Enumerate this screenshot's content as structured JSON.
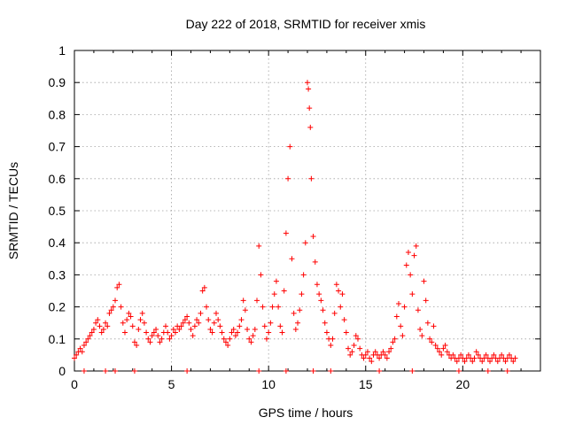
{
  "chart_data": {
    "type": "scatter",
    "title": "Day 222 of 2018, SRMTID for receiver xmis",
    "xlabel": "GPS time / hours",
    "ylabel": "SRMTID / TECUs",
    "xlim": [
      0,
      24
    ],
    "ylim": [
      0,
      1
    ],
    "xticks": [
      0,
      5,
      10,
      15,
      20
    ],
    "xtick_labels": [
      "0",
      "5",
      "10",
      "15",
      "20"
    ],
    "yticks": [
      0,
      0.1,
      0.2,
      0.3,
      0.4,
      0.5,
      0.6,
      0.7,
      0.8,
      0.9,
      1
    ],
    "ytick_labels": [
      "0",
      "0.1",
      "0.2",
      "0.3",
      "0.4",
      "0.5",
      "0.6",
      "0.7",
      "0.8",
      "0.9",
      "1"
    ],
    "grid": true,
    "marker": "plus",
    "color": "#ff0000",
    "series": [
      {
        "name": "SRMTID",
        "points": [
          [
            0.0,
            0.04
          ],
          [
            0.1,
            0.05
          ],
          [
            0.2,
            0.06
          ],
          [
            0.3,
            0.07
          ],
          [
            0.4,
            0.06
          ],
          [
            0.5,
            0.08
          ],
          [
            0.6,
            0.09
          ],
          [
            0.7,
            0.1
          ],
          [
            0.8,
            0.11
          ],
          [
            0.9,
            0.12
          ],
          [
            1.0,
            0.13
          ],
          [
            1.1,
            0.15
          ],
          [
            1.2,
            0.16
          ],
          [
            1.3,
            0.14
          ],
          [
            1.4,
            0.12
          ],
          [
            1.5,
            0.13
          ],
          [
            1.6,
            0.15
          ],
          [
            1.7,
            0.14
          ],
          [
            1.8,
            0.18
          ],
          [
            1.9,
            0.19
          ],
          [
            2.0,
            0.2
          ],
          [
            2.1,
            0.22
          ],
          [
            2.2,
            0.26
          ],
          [
            2.3,
            0.27
          ],
          [
            2.4,
            0.2
          ],
          [
            2.5,
            0.15
          ],
          [
            2.6,
            0.12
          ],
          [
            2.7,
            0.16
          ],
          [
            2.8,
            0.18
          ],
          [
            2.9,
            0.17
          ],
          [
            3.0,
            0.14
          ],
          [
            3.1,
            0.09
          ],
          [
            3.2,
            0.08
          ],
          [
            3.3,
            0.13
          ],
          [
            3.4,
            0.16
          ],
          [
            3.5,
            0.18
          ],
          [
            3.6,
            0.15
          ],
          [
            3.7,
            0.12
          ],
          [
            3.8,
            0.1
          ],
          [
            3.9,
            0.09
          ],
          [
            4.0,
            0.11
          ],
          [
            4.1,
            0.12
          ],
          [
            4.2,
            0.13
          ],
          [
            4.3,
            0.11
          ],
          [
            4.4,
            0.09
          ],
          [
            4.5,
            0.1
          ],
          [
            4.6,
            0.12
          ],
          [
            4.7,
            0.14
          ],
          [
            4.8,
            0.12
          ],
          [
            4.9,
            0.1
          ],
          [
            5.0,
            0.11
          ],
          [
            5.1,
            0.13
          ],
          [
            5.2,
            0.12
          ],
          [
            5.3,
            0.14
          ],
          [
            5.4,
            0.13
          ],
          [
            5.5,
            0.14
          ],
          [
            5.6,
            0.15
          ],
          [
            5.7,
            0.16
          ],
          [
            5.8,
            0.17
          ],
          [
            5.9,
            0.15
          ],
          [
            6.0,
            0.13
          ],
          [
            6.1,
            0.11
          ],
          [
            6.2,
            0.14
          ],
          [
            6.3,
            0.16
          ],
          [
            6.4,
            0.15
          ],
          [
            6.5,
            0.18
          ],
          [
            6.6,
            0.25
          ],
          [
            6.7,
            0.26
          ],
          [
            6.8,
            0.2
          ],
          [
            6.9,
            0.16
          ],
          [
            7.0,
            0.13
          ],
          [
            7.1,
            0.12
          ],
          [
            7.2,
            0.15
          ],
          [
            7.3,
            0.18
          ],
          [
            7.4,
            0.16
          ],
          [
            7.5,
            0.14
          ],
          [
            7.6,
            0.12
          ],
          [
            7.7,
            0.1
          ],
          [
            7.8,
            0.09
          ],
          [
            7.9,
            0.08
          ],
          [
            8.0,
            0.1
          ],
          [
            8.1,
            0.12
          ],
          [
            8.2,
            0.13
          ],
          [
            8.3,
            0.11
          ],
          [
            8.4,
            0.12
          ],
          [
            8.5,
            0.14
          ],
          [
            8.6,
            0.16
          ],
          [
            8.7,
            0.22
          ],
          [
            8.8,
            0.19
          ],
          [
            8.9,
            0.13
          ],
          [
            9.0,
            0.1
          ],
          [
            9.1,
            0.09
          ],
          [
            9.2,
            0.11
          ],
          [
            9.3,
            0.13
          ],
          [
            9.4,
            0.22
          ],
          [
            9.5,
            0.39
          ],
          [
            9.6,
            0.3
          ],
          [
            9.7,
            0.2
          ],
          [
            9.8,
            0.14
          ],
          [
            9.9,
            0.1
          ],
          [
            10.0,
            0.12
          ],
          [
            10.1,
            0.15
          ],
          [
            10.2,
            0.2
          ],
          [
            10.3,
            0.24
          ],
          [
            10.4,
            0.28
          ],
          [
            10.5,
            0.2
          ],
          [
            10.6,
            0.14
          ],
          [
            10.7,
            0.12
          ],
          [
            10.8,
            0.25
          ],
          [
            10.9,
            0.43
          ],
          [
            11.0,
            0.6
          ],
          [
            11.1,
            0.7
          ],
          [
            11.2,
            0.35
          ],
          [
            11.3,
            0.18
          ],
          [
            11.4,
            0.13
          ],
          [
            11.5,
            0.15
          ],
          [
            11.6,
            0.19
          ],
          [
            11.7,
            0.24
          ],
          [
            11.8,
            0.3
          ],
          [
            11.9,
            0.4
          ],
          [
            12.0,
            0.9
          ],
          [
            12.05,
            0.88
          ],
          [
            12.1,
            0.82
          ],
          [
            12.15,
            0.76
          ],
          [
            12.2,
            0.6
          ],
          [
            12.3,
            0.42
          ],
          [
            12.4,
            0.34
          ],
          [
            12.5,
            0.27
          ],
          [
            12.6,
            0.24
          ],
          [
            12.7,
            0.22
          ],
          [
            12.8,
            0.19
          ],
          [
            12.9,
            0.15
          ],
          [
            13.0,
            0.12
          ],
          [
            13.1,
            0.1
          ],
          [
            13.2,
            0.08
          ],
          [
            13.3,
            0.1
          ],
          [
            13.4,
            0.18
          ],
          [
            13.5,
            0.27
          ],
          [
            13.6,
            0.25
          ],
          [
            13.7,
            0.2
          ],
          [
            13.8,
            0.24
          ],
          [
            13.9,
            0.16
          ],
          [
            14.0,
            0.12
          ],
          [
            14.1,
            0.07
          ],
          [
            14.2,
            0.05
          ],
          [
            14.3,
            0.06
          ],
          [
            14.4,
            0.08
          ],
          [
            14.5,
            0.11
          ],
          [
            14.6,
            0.1
          ],
          [
            14.7,
            0.07
          ],
          [
            14.8,
            0.05
          ],
          [
            14.9,
            0.04
          ],
          [
            15.0,
            0.05
          ],
          [
            15.1,
            0.06
          ],
          [
            15.2,
            0.04
          ],
          [
            15.3,
            0.03
          ],
          [
            15.4,
            0.05
          ],
          [
            15.5,
            0.06
          ],
          [
            15.6,
            0.05
          ],
          [
            15.7,
            0.04
          ],
          [
            15.8,
            0.05
          ],
          [
            15.9,
            0.06
          ],
          [
            16.0,
            0.05
          ],
          [
            16.1,
            0.04
          ],
          [
            16.2,
            0.06
          ],
          [
            16.3,
            0.07
          ],
          [
            16.4,
            0.09
          ],
          [
            16.5,
            0.1
          ],
          [
            16.6,
            0.17
          ],
          [
            16.7,
            0.21
          ],
          [
            16.8,
            0.14
          ],
          [
            16.9,
            0.11
          ],
          [
            17.0,
            0.2
          ],
          [
            17.1,
            0.33
          ],
          [
            17.2,
            0.37
          ],
          [
            17.3,
            0.3
          ],
          [
            17.4,
            0.24
          ],
          [
            17.5,
            0.36
          ],
          [
            17.6,
            0.39
          ],
          [
            17.7,
            0.19
          ],
          [
            17.8,
            0.13
          ],
          [
            17.9,
            0.11
          ],
          [
            18.0,
            0.28
          ],
          [
            18.1,
            0.22
          ],
          [
            18.2,
            0.15
          ],
          [
            18.3,
            0.1
          ],
          [
            18.4,
            0.09
          ],
          [
            18.5,
            0.14
          ],
          [
            18.6,
            0.08
          ],
          [
            18.7,
            0.07
          ],
          [
            18.8,
            0.06
          ],
          [
            18.9,
            0.05
          ],
          [
            19.0,
            0.07
          ],
          [
            19.1,
            0.08
          ],
          [
            19.2,
            0.06
          ],
          [
            19.3,
            0.05
          ],
          [
            19.4,
            0.04
          ],
          [
            19.5,
            0.05
          ],
          [
            19.6,
            0.04
          ],
          [
            19.7,
            0.03
          ],
          [
            19.8,
            0.04
          ],
          [
            19.9,
            0.05
          ],
          [
            20.0,
            0.04
          ],
          [
            20.1,
            0.03
          ],
          [
            20.2,
            0.04
          ],
          [
            20.3,
            0.05
          ],
          [
            20.4,
            0.04
          ],
          [
            20.5,
            0.03
          ],
          [
            20.6,
            0.04
          ],
          [
            20.7,
            0.06
          ],
          [
            20.8,
            0.05
          ],
          [
            20.9,
            0.04
          ],
          [
            21.0,
            0.03
          ],
          [
            21.1,
            0.04
          ],
          [
            21.2,
            0.05
          ],
          [
            21.3,
            0.04
          ],
          [
            21.4,
            0.03
          ],
          [
            21.5,
            0.04
          ],
          [
            21.6,
            0.05
          ],
          [
            21.7,
            0.04
          ],
          [
            21.8,
            0.03
          ],
          [
            21.9,
            0.04
          ],
          [
            22.0,
            0.05
          ],
          [
            22.1,
            0.04
          ],
          [
            22.2,
            0.03
          ],
          [
            22.3,
            0.04
          ],
          [
            22.4,
            0.05
          ],
          [
            22.5,
            0.04
          ],
          [
            22.6,
            0.03
          ],
          [
            22.7,
            0.04
          ],
          [
            0.5,
            0.0
          ],
          [
            1.6,
            0.0
          ],
          [
            2.1,
            0.0
          ],
          [
            3.1,
            0.0
          ],
          [
            5.8,
            0.0
          ],
          [
            9.5,
            0.0
          ],
          [
            10.9,
            0.0
          ],
          [
            12.3,
            0.0
          ],
          [
            13.2,
            0.0
          ],
          [
            15.7,
            0.0
          ],
          [
            17.4,
            0.0
          ],
          [
            19.8,
            0.0
          ],
          [
            21.3,
            0.0
          ],
          [
            22.3,
            0.0
          ]
        ]
      }
    ]
  }
}
